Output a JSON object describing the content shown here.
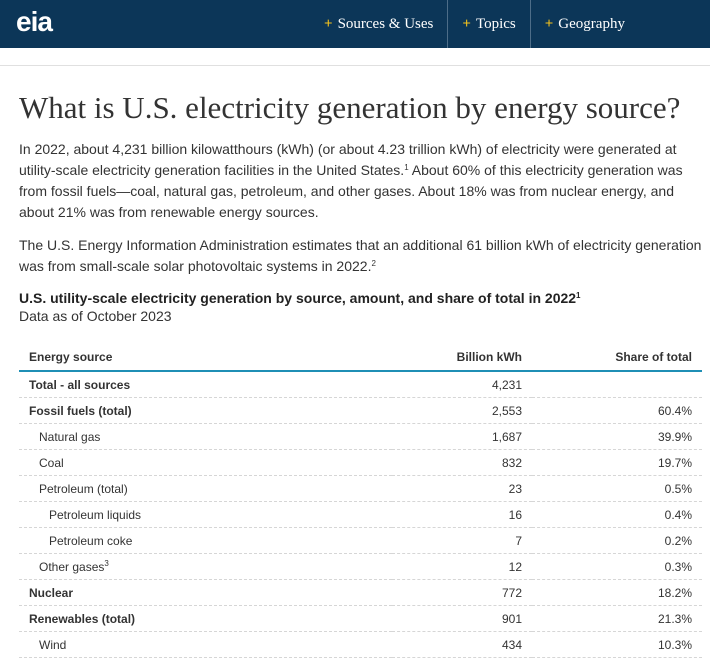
{
  "header": {
    "logo": "eia",
    "nav": [
      "Sources & Uses",
      "Topics",
      "Geography"
    ]
  },
  "title": "What is U.S. electricity generation by energy source?",
  "paragraphs": [
    [
      "In 2022, about 4,231 billion kilowatthours (kWh) (or about 4.23 trillion kWh) of electricity were generated at utility-scale electricity generation facilities in the United States.",
      "1",
      " About 60% of this electricity generation was from fossil fuels—coal, natural gas, petroleum, and other gases. About 18% was from nuclear energy, and about 21% was from renewable energy sources."
    ],
    [
      "The U.S. Energy Information Administration estimates that an additional 61 billion kWh of electricity generation was from small-scale solar photovoltaic systems in 2022.",
      "2"
    ]
  ],
  "table": {
    "caption": [
      "U.S. utility-scale electricity generation by source, amount, and share of total in 2022",
      "1"
    ],
    "subcaption": "Data as of October 2023",
    "headers": [
      "Energy source",
      "Billion kWh",
      "Share of total"
    ],
    "rows": [
      {
        "source": "Total - all sources",
        "kwh": "4,231"
      },
      {
        "source": "Fossil fuels (total)",
        "kwh": "2,553",
        "share": "60.4%"
      },
      {
        "source": "Natural gas",
        "kwh": "1,687",
        "share": "39.9%"
      },
      {
        "source": "Coal",
        "kwh": "832",
        "share": "19.7%"
      },
      {
        "source": "Petroleum (total)",
        "kwh": "23",
        "share": "0.5%"
      },
      {
        "source": "Petroleum liquids",
        "kwh": "16",
        "share": "0.4%"
      },
      {
        "source": "Petroleum coke",
        "kwh": "7",
        "share": "0.2%"
      },
      {
        "source": "Other gases",
        "note": "3",
        "kwh": "12",
        "share": "0.3%"
      },
      {
        "source": "Nuclear",
        "kwh": "772",
        "share": "18.2%"
      },
      {
        "source": "Renewables (total)",
        "kwh": "901",
        "share": "21.3%"
      },
      {
        "source": "Wind",
        "kwh": "434",
        "share": "10.3%"
      }
    ]
  }
}
